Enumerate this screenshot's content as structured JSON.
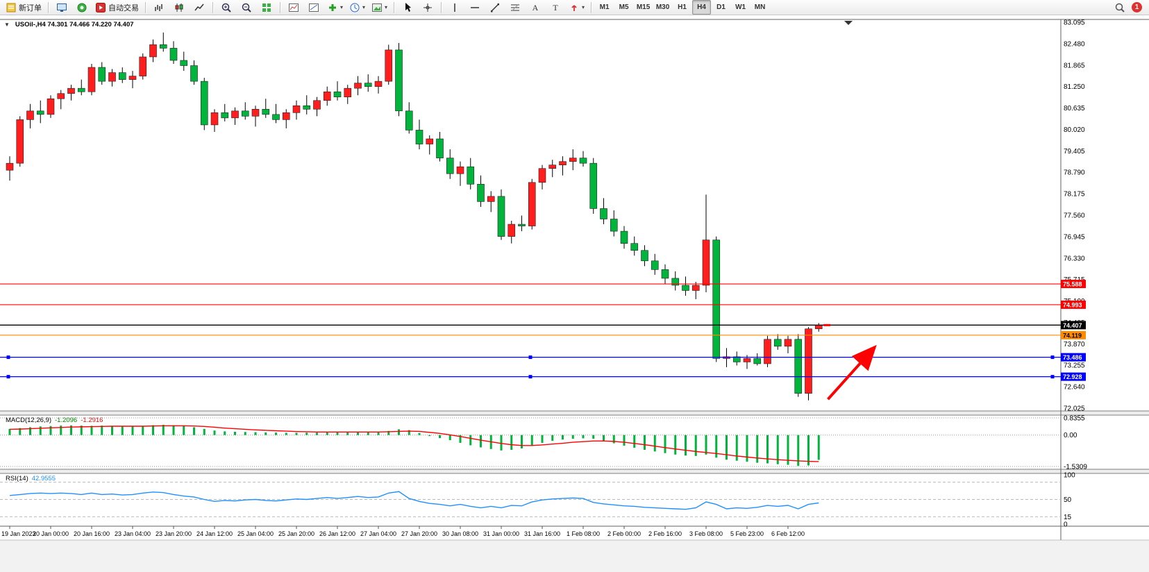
{
  "toolbar": {
    "buttons": [
      {
        "name": "new-order",
        "icon": "new-order",
        "label": "新订单"
      },
      {
        "sep": true
      },
      {
        "name": "charts-window",
        "icon": "charts"
      },
      {
        "name": "profiles",
        "icon": "profiles"
      },
      {
        "name": "autotrade",
        "icon": "autotrade",
        "label": "自动交易"
      },
      {
        "sep": true
      },
      {
        "name": "chart-bars",
        "icon": "chart-bars"
      },
      {
        "name": "chart-candles",
        "icon": "chart-candles"
      },
      {
        "name": "chart-line",
        "icon": "chart-line"
      },
      {
        "sep": true
      },
      {
        "name": "zoom-in",
        "icon": "zoom-in"
      },
      {
        "name": "zoom-out",
        "icon": "zoom-out"
      },
      {
        "name": "tile-windows",
        "icon": "tile-windows"
      },
      {
        "sep": true
      },
      {
        "name": "indicators-window",
        "icon": "indicators-window"
      },
      {
        "name": "objects-window",
        "icon": "objects-window"
      },
      {
        "name": "add-indicator",
        "icon": "add-indicator",
        "caret": true
      },
      {
        "name": "periods",
        "icon": "periods",
        "caret": true
      },
      {
        "name": "templates",
        "icon": "templates",
        "caret": true
      },
      {
        "sep": true
      },
      {
        "name": "cursor",
        "icon": "cursor"
      },
      {
        "name": "crosshair",
        "icon": "crosshair"
      },
      {
        "sep": true
      },
      {
        "name": "vertical-line",
        "icon": "vertical-line"
      },
      {
        "name": "horizontal-line",
        "icon": "horizontal-line"
      },
      {
        "name": "trendline",
        "icon": "trendline"
      },
      {
        "name": "fibonacci",
        "icon": "fibonacci"
      },
      {
        "name": "text",
        "icon": "text"
      },
      {
        "name": "text-label",
        "icon": "text-label"
      },
      {
        "name": "arrows-tool",
        "icon": "arrows-tool",
        "caret": true
      },
      {
        "sep": true
      }
    ],
    "timeframes": [
      "M1",
      "M5",
      "M15",
      "M30",
      "H1",
      "H4",
      "D1",
      "W1",
      "MN"
    ],
    "active_timeframe": "H4",
    "notification_count": "1"
  },
  "chart": {
    "one_click_glyph": "▼",
    "symbol_line": "USOil-,H4 74.301 74.466 74.220 74.407",
    "macd_label": "MACD(12,26,9)",
    "macd_value": "-1.2096",
    "macd_signal_value": "-1.2916",
    "rsi_label": "RSI(14)",
    "rsi_value": "42.9555"
  },
  "chart_data": [
    {
      "type": "candlestick",
      "title": "USOil-,H4",
      "up_color": "#FF1E1E",
      "down_color": "#00B43C",
      "ylim": [
        72.025,
        83.095
      ],
      "y_ticks": [
        "83.095",
        "82.480",
        "81.865",
        "81.250",
        "80.635",
        "80.020",
        "79.405",
        "78.790",
        "78.175",
        "77.560",
        "76.945",
        "76.330",
        "75.715",
        "75.100",
        "74.485",
        "73.870",
        "73.255",
        "72.640",
        "72.025"
      ],
      "x_labels": [
        "19 Jan 2023",
        "20 Jan 00:00",
        "20 Jan 16:00",
        "23 Jan 04:00",
        "23 Jan 20:00",
        "24 Jan 12:00",
        "25 Jan 04:00",
        "25 Jan 20:00",
        "26 Jan 12:00",
        "27 Jan 04:00",
        "27 Jan 20:00",
        "30 Jan 08:00",
        "31 Jan 00:00",
        "31 Jan 16:00",
        "1 Feb 08:00",
        "2 Feb 00:00",
        "2 Feb 16:00",
        "3 Feb 08:00",
        "5 Feb 23:00",
        "6 Feb 12:00"
      ],
      "x_label_step": 4,
      "candles": [
        [
          78.85,
          79.25,
          78.55,
          79.05
        ],
        [
          79.05,
          80.4,
          78.95,
          80.3
        ],
        [
          80.3,
          80.75,
          80.05,
          80.55
        ],
        [
          80.55,
          80.85,
          80.2,
          80.45
        ],
        [
          80.45,
          81.0,
          80.35,
          80.9
        ],
        [
          80.9,
          81.15,
          80.6,
          81.05
        ],
        [
          81.05,
          81.3,
          80.85,
          81.2
        ],
        [
          81.2,
          81.45,
          81.0,
          81.1
        ],
        [
          81.1,
          81.9,
          81.0,
          81.8
        ],
        [
          81.8,
          81.95,
          81.3,
          81.4
        ],
        [
          81.4,
          81.75,
          81.25,
          81.65
        ],
        [
          81.65,
          81.8,
          81.35,
          81.45
        ],
        [
          81.45,
          81.7,
          81.2,
          81.55
        ],
        [
          81.55,
          82.2,
          81.45,
          82.1
        ],
        [
          82.1,
          82.6,
          81.95,
          82.45
        ],
        [
          82.45,
          82.8,
          82.25,
          82.35
        ],
        [
          82.35,
          82.55,
          81.9,
          82.0
        ],
        [
          82.0,
          82.25,
          81.7,
          81.85
        ],
        [
          81.85,
          82.0,
          81.3,
          81.4
        ],
        [
          81.4,
          81.5,
          80.0,
          80.15
        ],
        [
          80.15,
          80.6,
          79.95,
          80.5
        ],
        [
          80.5,
          80.75,
          80.25,
          80.35
        ],
        [
          80.35,
          80.65,
          80.15,
          80.55
        ],
        [
          80.55,
          80.8,
          80.3,
          80.4
        ],
        [
          80.4,
          80.7,
          80.1,
          80.6
        ],
        [
          80.6,
          80.9,
          80.35,
          80.45
        ],
        [
          80.45,
          80.75,
          80.2,
          80.3
        ],
        [
          80.3,
          80.6,
          80.05,
          80.5
        ],
        [
          80.5,
          80.85,
          80.3,
          80.7
        ],
        [
          80.7,
          81.0,
          80.45,
          80.6
        ],
        [
          80.6,
          80.95,
          80.4,
          80.85
        ],
        [
          80.85,
          81.25,
          80.7,
          81.1
        ],
        [
          81.1,
          81.4,
          80.85,
          80.95
        ],
        [
          80.95,
          81.3,
          80.75,
          81.2
        ],
        [
          81.2,
          81.55,
          81.0,
          81.35
        ],
        [
          81.35,
          81.6,
          81.1,
          81.25
        ],
        [
          81.25,
          81.55,
          81.05,
          81.4
        ],
        [
          81.4,
          82.45,
          81.3,
          82.3
        ],
        [
          82.3,
          82.5,
          80.4,
          80.55
        ],
        [
          80.55,
          80.8,
          79.9,
          80.0
        ],
        [
          80.0,
          80.3,
          79.45,
          79.6
        ],
        [
          79.6,
          79.85,
          79.3,
          79.75
        ],
        [
          79.75,
          79.95,
          79.1,
          79.2
        ],
        [
          79.2,
          79.45,
          78.6,
          78.75
        ],
        [
          78.75,
          79.1,
          78.4,
          78.95
        ],
        [
          78.95,
          79.2,
          78.3,
          78.45
        ],
        [
          78.45,
          78.7,
          77.8,
          77.95
        ],
        [
          77.95,
          78.25,
          77.65,
          78.1
        ],
        [
          78.1,
          78.3,
          76.85,
          76.95
        ],
        [
          76.95,
          77.4,
          76.75,
          77.3
        ],
        [
          77.3,
          77.55,
          77.1,
          77.25
        ],
        [
          77.25,
          78.6,
          77.15,
          78.5
        ],
        [
          78.5,
          79.0,
          78.3,
          78.9
        ],
        [
          78.9,
          79.15,
          78.65,
          79.0
        ],
        [
          79.0,
          79.25,
          78.7,
          79.1
        ],
        [
          79.1,
          79.45,
          78.85,
          79.2
        ],
        [
          79.2,
          79.4,
          78.95,
          79.05
        ],
        [
          79.05,
          79.2,
          77.6,
          77.75
        ],
        [
          77.75,
          78.05,
          77.3,
          77.45
        ],
        [
          77.45,
          77.7,
          76.95,
          77.1
        ],
        [
          77.1,
          77.25,
          76.6,
          76.75
        ],
        [
          76.75,
          76.95,
          76.4,
          76.55
        ],
        [
          76.55,
          76.7,
          76.1,
          76.25
        ],
        [
          76.25,
          76.45,
          75.85,
          76.0
        ],
        [
          76.0,
          76.15,
          75.6,
          75.75
        ],
        [
          75.75,
          75.95,
          75.4,
          75.55
        ],
        [
          75.55,
          75.8,
          75.25,
          75.4
        ],
        [
          75.4,
          75.65,
          75.15,
          75.55
        ],
        [
          75.55,
          78.15,
          75.35,
          76.85
        ],
        [
          76.85,
          76.95,
          73.35,
          73.45
        ],
        [
          73.45,
          73.75,
          73.2,
          73.5
        ],
        [
          73.5,
          73.65,
          73.25,
          73.35
        ],
        [
          73.35,
          73.55,
          73.15,
          73.45
        ],
        [
          73.45,
          73.6,
          73.25,
          73.3
        ],
        [
          73.3,
          74.1,
          73.2,
          74.0
        ],
        [
          74.0,
          74.15,
          73.7,
          73.8
        ],
        [
          73.8,
          74.1,
          73.6,
          74.0
        ],
        [
          74.0,
          74.15,
          72.35,
          72.45
        ],
        [
          72.45,
          74.35,
          72.25,
          74.3
        ],
        [
          74.301,
          74.466,
          74.22,
          74.407
        ]
      ],
      "hlines": [
        {
          "price": 75.588,
          "label": "75.588",
          "color": "#FF0000",
          "text_color": "#FFFFFF",
          "handles": false
        },
        {
          "price": 74.993,
          "label": "74.993",
          "color": "#FF0000",
          "text_color": "#FFFFFF",
          "handles": false
        },
        {
          "price": 74.407,
          "label": "74.407",
          "color": "#000000",
          "text_color": "#FFFFFF",
          "handles": false,
          "current": true
        },
        {
          "price": 74.119,
          "label": "74.119",
          "color": "#FF8C00",
          "text_color": "#000000",
          "handles": false
        },
        {
          "price": 73.486,
          "label": "73.486",
          "color": "#0000FF",
          "text_color": "#FFFFFF",
          "handles": true
        },
        {
          "price": 72.928,
          "label": "72.928",
          "color": "#0000FF",
          "text_color": "#FFFFFF",
          "handles": true
        }
      ],
      "current_price": 74.407,
      "shift_marker_index": 81.9,
      "arrow": {
        "from": {
          "index": 79.9,
          "price": 72.28
        },
        "to": {
          "index": 84.3,
          "price": 73.72
        },
        "color": "#FF0000"
      }
    },
    {
      "type": "bar",
      "name": "MACD(12,26,9)",
      "bar_color": "#00B43C",
      "signal_color": "#FF0000",
      "ylim": [
        -1.5309,
        0.8355
      ],
      "y_ticks": [
        "0.8355",
        "0.00",
        "-1.5309"
      ],
      "values": [
        0.3,
        0.34,
        0.38,
        0.42,
        0.44,
        0.46,
        0.47,
        0.46,
        0.45,
        0.46,
        0.44,
        0.42,
        0.42,
        0.45,
        0.48,
        0.5,
        0.48,
        0.44,
        0.38,
        0.3,
        0.22,
        0.18,
        0.16,
        0.15,
        0.14,
        0.13,
        0.12,
        0.11,
        0.11,
        0.12,
        0.12,
        0.13,
        0.14,
        0.15,
        0.16,
        0.16,
        0.16,
        0.2,
        0.28,
        0.24,
        0.1,
        -0.05,
        -0.15,
        -0.25,
        -0.38,
        -0.5,
        -0.6,
        -0.68,
        -0.75,
        -0.72,
        -0.65,
        -0.52,
        -0.38,
        -0.28,
        -0.22,
        -0.18,
        -0.16,
        -0.18,
        -0.28,
        -0.4,
        -0.52,
        -0.62,
        -0.72,
        -0.8,
        -0.88,
        -0.95,
        -1.0,
        -1.02,
        -0.95,
        -1.1,
        -1.2,
        -1.25,
        -1.3,
        -1.35,
        -1.38,
        -1.42,
        -1.45,
        -1.5,
        -1.48,
        -1.2096
      ],
      "signal": [
        0.28,
        0.29,
        0.31,
        0.33,
        0.35,
        0.37,
        0.39,
        0.4,
        0.41,
        0.42,
        0.43,
        0.43,
        0.43,
        0.43,
        0.44,
        0.45,
        0.45,
        0.45,
        0.44,
        0.42,
        0.38,
        0.34,
        0.31,
        0.28,
        0.25,
        0.23,
        0.21,
        0.19,
        0.17,
        0.16,
        0.15,
        0.15,
        0.15,
        0.15,
        0.15,
        0.15,
        0.15,
        0.16,
        0.18,
        0.19,
        0.18,
        0.13,
        0.08,
        0.01,
        -0.07,
        -0.16,
        -0.25,
        -0.33,
        -0.41,
        -0.47,
        -0.51,
        -0.51,
        -0.48,
        -0.44,
        -0.4,
        -0.35,
        -0.32,
        -0.29,
        -0.29,
        -0.31,
        -0.35,
        -0.41,
        -0.47,
        -0.54,
        -0.61,
        -0.68,
        -0.74,
        -0.8,
        -0.85,
        -0.9,
        -0.96,
        -1.02,
        -1.07,
        -1.12,
        -1.16,
        -1.2,
        -1.23,
        -1.26,
        -1.28,
        -1.2916
      ]
    },
    {
      "type": "line",
      "name": "RSI(14)",
      "line_color": "#1E90FF",
      "ylim": [
        0,
        100
      ],
      "levels": [
        85,
        50,
        15
      ],
      "y_ticks": [
        "100",
        "50",
        "15",
        "0"
      ],
      "values": [
        58,
        60,
        62,
        63,
        62,
        63,
        62,
        60,
        63,
        60,
        61,
        59,
        60,
        63,
        65,
        64,
        60,
        57,
        55,
        50,
        46,
        48,
        47,
        49,
        50,
        48,
        47,
        49,
        51,
        50,
        52,
        54,
        52,
        54,
        56,
        54,
        55,
        63,
        66,
        52,
        46,
        42,
        40,
        37,
        40,
        36,
        33,
        36,
        33,
        38,
        37,
        45,
        49,
        51,
        52,
        53,
        52,
        44,
        41,
        39,
        37,
        36,
        34,
        33,
        32,
        31,
        30,
        33,
        45,
        40,
        31,
        33,
        32,
        34,
        38,
        36,
        38,
        31,
        40,
        42.9555
      ]
    }
  ]
}
